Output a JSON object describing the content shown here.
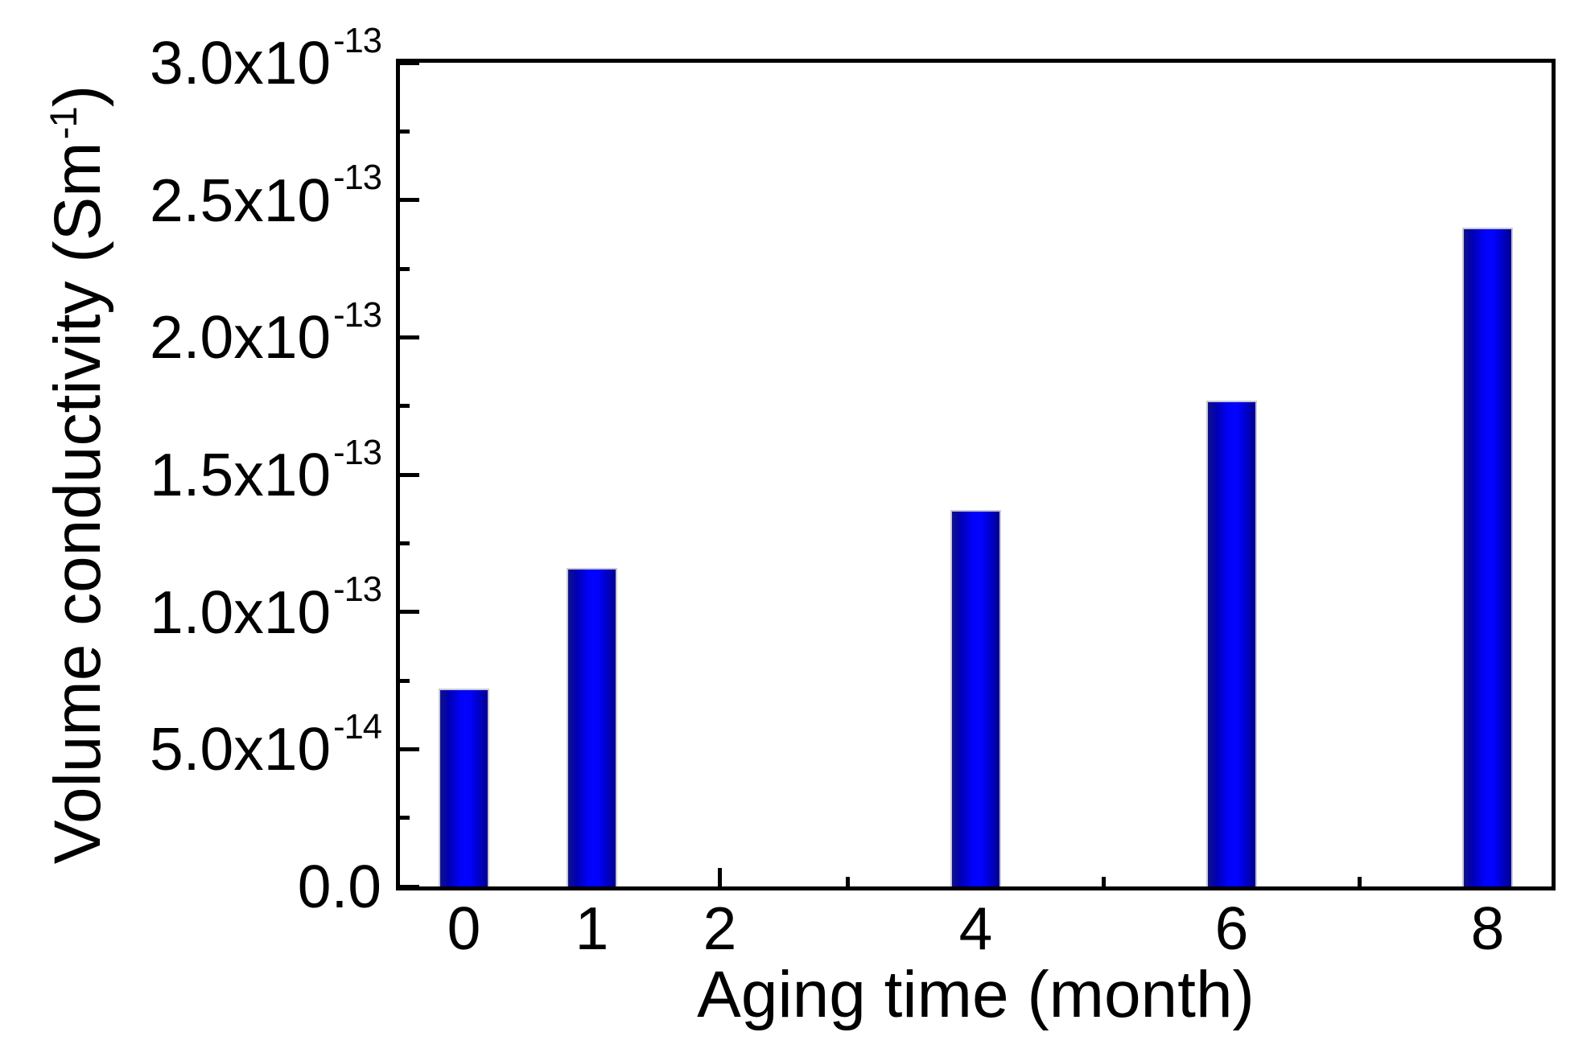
{
  "figure": {
    "background": "#ffffff"
  },
  "chart_data": {
    "type": "bar",
    "xlabel": "Aging time (month)",
    "ylabel": {
      "pre": "Volume conductivity (Sm",
      "sup": "-1",
      "post": ")"
    },
    "x": [
      0,
      1,
      4,
      6,
      8
    ],
    "values": [
      7.2e-14,
      1.16e-13,
      1.37e-13,
      1.77e-13,
      2.4e-13
    ],
    "bar_width": 0.4,
    "xlim": [
      -0.5,
      8.5
    ],
    "ylim": [
      0,
      3e-13
    ],
    "grid": false,
    "x_ticks": {
      "major": [
        0,
        1,
        2,
        4,
        6,
        8
      ],
      "minor": [
        3,
        5,
        7
      ],
      "labels": [
        {
          "t": 0,
          "text": "0"
        },
        {
          "t": 1,
          "text": "1"
        },
        {
          "t": 2,
          "text": "2"
        },
        {
          "t": 4,
          "text": "4"
        },
        {
          "t": 6,
          "text": "6"
        },
        {
          "t": 8,
          "text": "8"
        }
      ]
    },
    "y_ticks": {
      "major": [
        0,
        5e-14,
        1e-13,
        1.5e-13,
        2e-13,
        2.5e-13,
        3e-13
      ],
      "minor": [
        2.5e-14,
        7.5e-14,
        1.25e-13,
        1.75e-13,
        2.25e-13,
        2.75e-13
      ],
      "labels": [
        {
          "v": 0,
          "mant": "0.0",
          "exp": null
        },
        {
          "v": 5e-14,
          "mant": "5.0x10",
          "exp": "-14"
        },
        {
          "v": 1e-13,
          "mant": "1.0x10",
          "exp": "-13"
        },
        {
          "v": 1.5e-13,
          "mant": "1.5x10",
          "exp": "-13"
        },
        {
          "v": 2e-13,
          "mant": "2.0x10",
          "exp": "-13"
        },
        {
          "v": 2.5e-13,
          "mant": "2.5x10",
          "exp": "-13"
        },
        {
          "v": 3e-13,
          "mant": "3.0x10",
          "exp": "-13"
        }
      ]
    },
    "colors": {
      "bar_gradient": [
        "#10108a 0%",
        "#0000b2 18%",
        "#0202fc 45%",
        "#0202ff 62%",
        "#0000d2 78%",
        "#000090 100%"
      ],
      "bar_border": "#c8c8d4",
      "axis": "#000000",
      "text": "#000000"
    }
  }
}
